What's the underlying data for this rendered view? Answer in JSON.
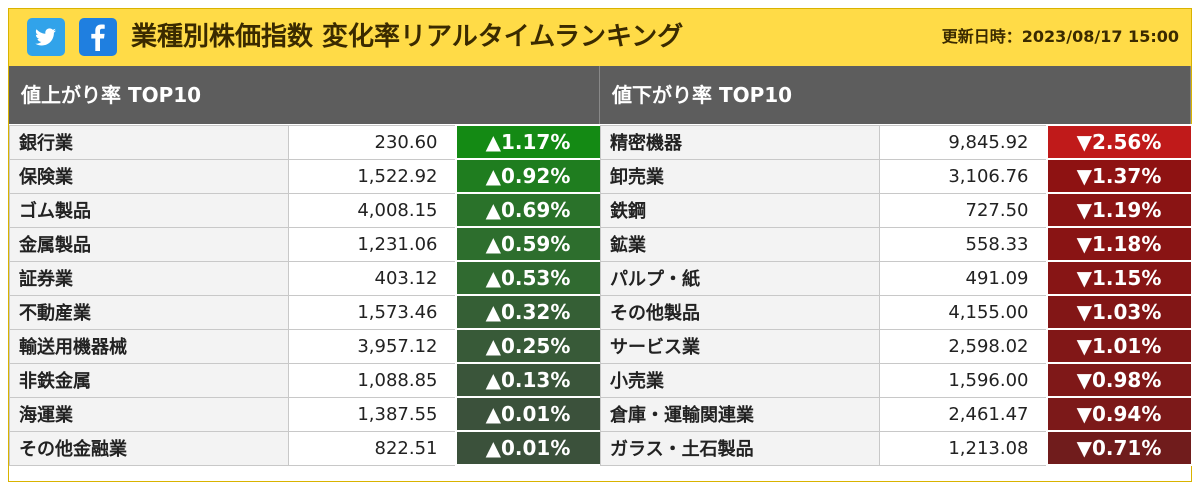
{
  "header": {
    "title": "業種別株価指数 変化率リアルタイムランキング",
    "updated": "更新日時：2023/08/17 15:00",
    "twitter_icon": "twitter-bird-icon",
    "facebook_icon": "facebook-f-icon",
    "bg_color": "#ffdb47"
  },
  "up": {
    "title": "値上がり率 TOP10",
    "rows": [
      {
        "name": "銀行業",
        "price": "230.60",
        "rate": "▲1.17%",
        "color": "#148a14"
      },
      {
        "name": "保険業",
        "price": "1,522.92",
        "rate": "▲0.92%",
        "color": "#1f7d1f"
      },
      {
        "name": "ゴム製品",
        "price": "4,008.15",
        "rate": "▲0.69%",
        "color": "#2a722a"
      },
      {
        "name": "金属製品",
        "price": "1,231.06",
        "rate": "▲0.59%",
        "color": "#2d6e2d"
      },
      {
        "name": "証券業",
        "price": "403.12",
        "rate": "▲0.53%",
        "color": "#306a30"
      },
      {
        "name": "不動産業",
        "price": "1,573.46",
        "rate": "▲0.32%",
        "color": "#355f35"
      },
      {
        "name": "輸送用機器械",
        "price": "3,957.12",
        "rate": "▲0.25%",
        "color": "#385a38"
      },
      {
        "name": "非鉄金属",
        "price": "1,088.85",
        "rate": "▲0.13%",
        "color": "#3a553a"
      },
      {
        "name": "海運業",
        "price": "1,387.55",
        "rate": "▲0.01%",
        "color": "#3b513b"
      },
      {
        "name": "その他金融業",
        "price": "822.51",
        "rate": "▲0.01%",
        "color": "#3b513b"
      }
    ]
  },
  "down": {
    "title": "値下がり率 TOP10",
    "rows": [
      {
        "name": "精密機器",
        "price": "9,845.92",
        "rate": "▼2.56%",
        "color": "#c01a1a"
      },
      {
        "name": "卸売業",
        "price": "3,106.76",
        "rate": "▼1.37%",
        "color": "#8e1212"
      },
      {
        "name": "鉄鋼",
        "price": "727.50",
        "rate": "▼1.19%",
        "color": "#8a1414"
      },
      {
        "name": "鉱業",
        "price": "558.33",
        "rate": "▼1.18%",
        "color": "#891414"
      },
      {
        "name": "パルプ・紙",
        "price": "491.09",
        "rate": "▼1.15%",
        "color": "#871515"
      },
      {
        "name": "その他製品",
        "price": "4,155.00",
        "rate": "▼1.03%",
        "color": "#821616"
      },
      {
        "name": "サービス業",
        "price": "2,598.02",
        "rate": "▼1.01%",
        "color": "#811717"
      },
      {
        "name": "小売業",
        "price": "1,596.00",
        "rate": "▼0.98%",
        "color": "#7f1818"
      },
      {
        "name": "倉庫・運輸関連業",
        "price": "2,461.47",
        "rate": "▼0.94%",
        "color": "#7c1919"
      },
      {
        "name": "ガラス・土石製品",
        "price": "1,213.08",
        "rate": "▼0.71%",
        "color": "#701c1c"
      }
    ]
  }
}
